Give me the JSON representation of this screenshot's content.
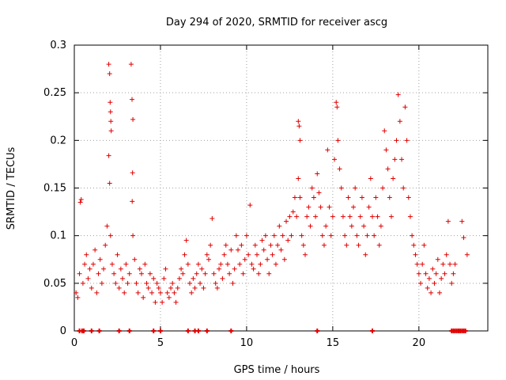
{
  "chart_data": {
    "type": "scatter",
    "title": "Day 294 of 2020, SRMTID for receiver ascg",
    "xlabel": "GPS time / hours",
    "ylabel": "SRMTID / TECUs",
    "xlim": [
      0,
      24
    ],
    "ylim": [
      0,
      0.3
    ],
    "x_ticks": [
      0,
      5,
      10,
      15,
      20
    ],
    "y_ticks": [
      0,
      0.05,
      0.1,
      0.15,
      0.2,
      0.25,
      0.3
    ],
    "x_tick_labels": [
      "0",
      "5",
      "10",
      "15",
      "20"
    ],
    "y_tick_labels": [
      "0",
      "0.05",
      "0.1",
      "0.15",
      "0.2",
      "0.25",
      "0.3"
    ],
    "grid": true,
    "marker": "+",
    "color": "#e00000",
    "zero_markers_x": [
      0.3,
      0.45,
      0.55,
      1.0,
      1.45,
      2.6,
      3.2,
      4.6,
      5.0,
      6.6,
      7.0,
      7.2,
      7.7,
      9.1,
      14.1,
      17.3,
      21.9,
      22.0,
      22.1,
      22.2,
      22.3,
      22.4,
      22.5,
      22.6,
      22.7
    ],
    "series": [
      {
        "name": "SRMTID",
        "points": [
          [
            0.1,
            0.04
          ],
          [
            0.2,
            0.035
          ],
          [
            0.3,
            0.06
          ],
          [
            0.35,
            0.135
          ],
          [
            0.4,
            0.138
          ],
          [
            0.5,
            0.05
          ],
          [
            0.6,
            0.07
          ],
          [
            0.7,
            0.08
          ],
          [
            0.8,
            0.055
          ],
          [
            0.9,
            0.065
          ],
          [
            1.0,
            0.045
          ],
          [
            1.1,
            0.07
          ],
          [
            1.2,
            0.085
          ],
          [
            1.3,
            0.04
          ],
          [
            1.4,
            0.06
          ],
          [
            1.5,
            0.075
          ],
          [
            1.6,
            0.05
          ],
          [
            1.7,
            0.065
          ],
          [
            1.8,
            0.09
          ],
          [
            1.9,
            0.11
          ],
          [
            2.0,
            0.28
          ],
          [
            2.05,
            0.27
          ],
          [
            2.08,
            0.24
          ],
          [
            2.1,
            0.23
          ],
          [
            2.12,
            0.22
          ],
          [
            2.14,
            0.21
          ],
          [
            2.0,
            0.184
          ],
          [
            2.05,
            0.155
          ],
          [
            2.1,
            0.1
          ],
          [
            2.2,
            0.07
          ],
          [
            2.3,
            0.06
          ],
          [
            2.4,
            0.05
          ],
          [
            2.5,
            0.08
          ],
          [
            2.6,
            0.045
          ],
          [
            2.7,
            0.065
          ],
          [
            2.8,
            0.055
          ],
          [
            2.9,
            0.04
          ],
          [
            3.0,
            0.07
          ],
          [
            3.1,
            0.05
          ],
          [
            3.2,
            0.06
          ],
          [
            3.3,
            0.28
          ],
          [
            3.35,
            0.243
          ],
          [
            3.4,
            0.222
          ],
          [
            3.38,
            0.166
          ],
          [
            3.36,
            0.136
          ],
          [
            3.4,
            0.1
          ],
          [
            3.5,
            0.075
          ],
          [
            3.6,
            0.05
          ],
          [
            3.7,
            0.04
          ],
          [
            3.8,
            0.065
          ],
          [
            3.9,
            0.06
          ],
          [
            4.0,
            0.035
          ],
          [
            4.1,
            0.07
          ],
          [
            4.2,
            0.05
          ],
          [
            4.3,
            0.045
          ],
          [
            4.4,
            0.06
          ],
          [
            4.5,
            0.04
          ],
          [
            4.6,
            0.055
          ],
          [
            4.7,
            0.03
          ],
          [
            4.8,
            0.05
          ],
          [
            4.9,
            0.045
          ],
          [
            5.0,
            0.04
          ],
          [
            5.1,
            0.03
          ],
          [
            5.2,
            0.055
          ],
          [
            5.3,
            0.065
          ],
          [
            5.4,
            0.04
          ],
          [
            5.5,
            0.035
          ],
          [
            5.6,
            0.045
          ],
          [
            5.7,
            0.05
          ],
          [
            5.8,
            0.04
          ],
          [
            5.9,
            0.03
          ],
          [
            6.0,
            0.045
          ],
          [
            6.1,
            0.055
          ],
          [
            6.2,
            0.065
          ],
          [
            6.3,
            0.06
          ],
          [
            6.4,
            0.08
          ],
          [
            6.5,
            0.095
          ],
          [
            6.6,
            0.07
          ],
          [
            6.7,
            0.05
          ],
          [
            6.8,
            0.04
          ],
          [
            6.9,
            0.055
          ],
          [
            7.0,
            0.045
          ],
          [
            7.1,
            0.06
          ],
          [
            7.2,
            0.07
          ],
          [
            7.3,
            0.05
          ],
          [
            7.4,
            0.065
          ],
          [
            7.5,
            0.045
          ],
          [
            7.6,
            0.06
          ],
          [
            7.7,
            0.08
          ],
          [
            7.8,
            0.075
          ],
          [
            7.9,
            0.09
          ],
          [
            8.0,
            0.118
          ],
          [
            8.1,
            0.06
          ],
          [
            8.2,
            0.05
          ],
          [
            8.3,
            0.045
          ],
          [
            8.4,
            0.065
          ],
          [
            8.5,
            0.07
          ],
          [
            8.6,
            0.055
          ],
          [
            8.7,
            0.08
          ],
          [
            8.8,
            0.09
          ],
          [
            8.9,
            0.07
          ],
          [
            9.0,
            0.06
          ],
          [
            9.1,
            0.085
          ],
          [
            9.2,
            0.05
          ],
          [
            9.3,
            0.065
          ],
          [
            9.4,
            0.1
          ],
          [
            9.5,
            0.085
          ],
          [
            9.6,
            0.07
          ],
          [
            9.7,
            0.09
          ],
          [
            9.8,
            0.06
          ],
          [
            9.9,
            0.075
          ],
          [
            10.0,
            0.1
          ],
          [
            10.1,
            0.08
          ],
          [
            10.2,
            0.132
          ],
          [
            10.3,
            0.07
          ],
          [
            10.4,
            0.065
          ],
          [
            10.5,
            0.09
          ],
          [
            10.6,
            0.08
          ],
          [
            10.7,
            0.06
          ],
          [
            10.8,
            0.07
          ],
          [
            10.9,
            0.095
          ],
          [
            11.0,
            0.085
          ],
          [
            11.1,
            0.1
          ],
          [
            11.2,
            0.075
          ],
          [
            11.3,
            0.06
          ],
          [
            11.4,
            0.09
          ],
          [
            11.5,
            0.08
          ],
          [
            11.6,
            0.1
          ],
          [
            11.7,
            0.07
          ],
          [
            11.8,
            0.09
          ],
          [
            11.9,
            0.11
          ],
          [
            12.0,
            0.085
          ],
          [
            12.1,
            0.1
          ],
          [
            12.2,
            0.075
          ],
          [
            12.3,
            0.115
          ],
          [
            12.4,
            0.095
          ],
          [
            12.5,
            0.12
          ],
          [
            12.6,
            0.1
          ],
          [
            12.7,
            0.125
          ],
          [
            12.8,
            0.14
          ],
          [
            12.9,
            0.12
          ],
          [
            13.0,
            0.22
          ],
          [
            13.05,
            0.215
          ],
          [
            13.1,
            0.2
          ],
          [
            13.0,
            0.16
          ],
          [
            13.1,
            0.14
          ],
          [
            13.2,
            0.1
          ],
          [
            13.3,
            0.09
          ],
          [
            13.4,
            0.08
          ],
          [
            13.5,
            0.12
          ],
          [
            13.6,
            0.13
          ],
          [
            13.7,
            0.11
          ],
          [
            13.8,
            0.15
          ],
          [
            13.9,
            0.14
          ],
          [
            14.0,
            0.12
          ],
          [
            14.1,
            0.165
          ],
          [
            14.2,
            0.145
          ],
          [
            14.3,
            0.13
          ],
          [
            14.4,
            0.1
          ],
          [
            14.5,
            0.09
          ],
          [
            14.6,
            0.11
          ],
          [
            14.7,
            0.19
          ],
          [
            14.8,
            0.13
          ],
          [
            14.9,
            0.1
          ],
          [
            15.0,
            0.12
          ],
          [
            15.1,
            0.18
          ],
          [
            15.2,
            0.24
          ],
          [
            15.25,
            0.235
          ],
          [
            15.3,
            0.2
          ],
          [
            15.4,
            0.17
          ],
          [
            15.5,
            0.15
          ],
          [
            15.6,
            0.12
          ],
          [
            15.7,
            0.1
          ],
          [
            15.8,
            0.09
          ],
          [
            15.9,
            0.14
          ],
          [
            16.0,
            0.12
          ],
          [
            16.1,
            0.11
          ],
          [
            16.2,
            0.13
          ],
          [
            16.3,
            0.15
          ],
          [
            16.4,
            0.1
          ],
          [
            16.5,
            0.09
          ],
          [
            16.6,
            0.12
          ],
          [
            16.7,
            0.14
          ],
          [
            16.8,
            0.11
          ],
          [
            16.9,
            0.08
          ],
          [
            17.0,
            0.1
          ],
          [
            17.1,
            0.13
          ],
          [
            17.2,
            0.16
          ],
          [
            17.3,
            0.12
          ],
          [
            17.4,
            0.1
          ],
          [
            17.5,
            0.14
          ],
          [
            17.6,
            0.12
          ],
          [
            17.7,
            0.09
          ],
          [
            17.8,
            0.11
          ],
          [
            17.9,
            0.15
          ],
          [
            18.0,
            0.21
          ],
          [
            18.1,
            0.19
          ],
          [
            18.2,
            0.17
          ],
          [
            18.3,
            0.14
          ],
          [
            18.4,
            0.12
          ],
          [
            18.5,
            0.16
          ],
          [
            18.6,
            0.18
          ],
          [
            18.7,
            0.2
          ],
          [
            18.8,
            0.248
          ],
          [
            18.9,
            0.22
          ],
          [
            19.0,
            0.18
          ],
          [
            19.1,
            0.15
          ],
          [
            19.2,
            0.235
          ],
          [
            19.3,
            0.2
          ],
          [
            19.4,
            0.14
          ],
          [
            19.5,
            0.12
          ],
          [
            19.6,
            0.1
          ],
          [
            19.7,
            0.09
          ],
          [
            19.8,
            0.08
          ],
          [
            19.9,
            0.07
          ],
          [
            20.0,
            0.06
          ],
          [
            20.1,
            0.05
          ],
          [
            20.2,
            0.07
          ],
          [
            20.3,
            0.09
          ],
          [
            20.4,
            0.06
          ],
          [
            20.5,
            0.045
          ],
          [
            20.6,
            0.055
          ],
          [
            20.7,
            0.04
          ],
          [
            20.8,
            0.065
          ],
          [
            20.9,
            0.05
          ],
          [
            21.0,
            0.06
          ],
          [
            21.1,
            0.075
          ],
          [
            21.2,
            0.04
          ],
          [
            21.3,
            0.055
          ],
          [
            21.4,
            0.07
          ],
          [
            21.5,
            0.06
          ],
          [
            21.6,
            0.08
          ],
          [
            21.7,
            0.115
          ],
          [
            21.8,
            0.07
          ],
          [
            21.9,
            0.05
          ],
          [
            22.0,
            0.06
          ],
          [
            22.1,
            0.07
          ],
          [
            22.5,
            0.115
          ],
          [
            22.6,
            0.098
          ],
          [
            22.8,
            0.08
          ]
        ]
      }
    ]
  }
}
